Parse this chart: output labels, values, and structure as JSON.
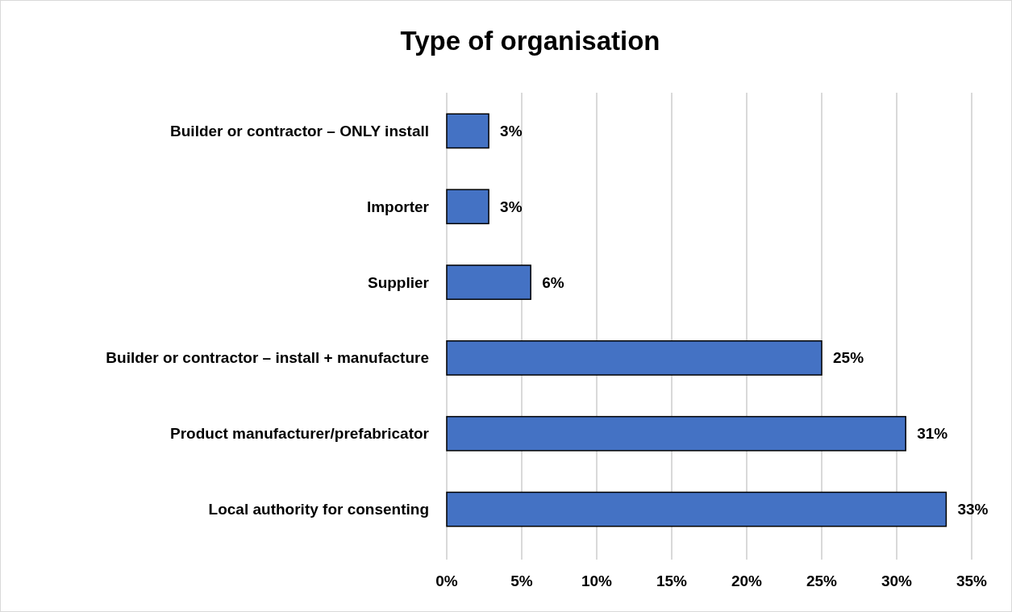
{
  "chart_data": {
    "type": "bar",
    "orientation": "horizontal",
    "title": "Type of organisation",
    "categories": [
      "Builder or contractor – ONLY install",
      "Importer",
      "Supplier",
      "Builder or contractor – install + manufacture",
      "Product manufacturer/prefabricator",
      "Local authority for consenting"
    ],
    "values": [
      2.8,
      2.8,
      5.6,
      25,
      30.6,
      33.3
    ],
    "value_labels": [
      "3%",
      "3%",
      "6%",
      "25%",
      "31%",
      "33%"
    ],
    "color": "#4472c4",
    "xlim": [
      0,
      35
    ],
    "xticks": [
      {
        "value": 0,
        "label": "0%"
      },
      {
        "value": 5,
        "label": "5%"
      },
      {
        "value": 10,
        "label": "10%"
      },
      {
        "value": 15,
        "label": "15%"
      },
      {
        "value": 20,
        "label": "20%"
      },
      {
        "value": 25,
        "label": "25%"
      },
      {
        "value": 30,
        "label": "30%"
      },
      {
        "value": 35,
        "label": "35%"
      }
    ],
    "grid": "x"
  }
}
